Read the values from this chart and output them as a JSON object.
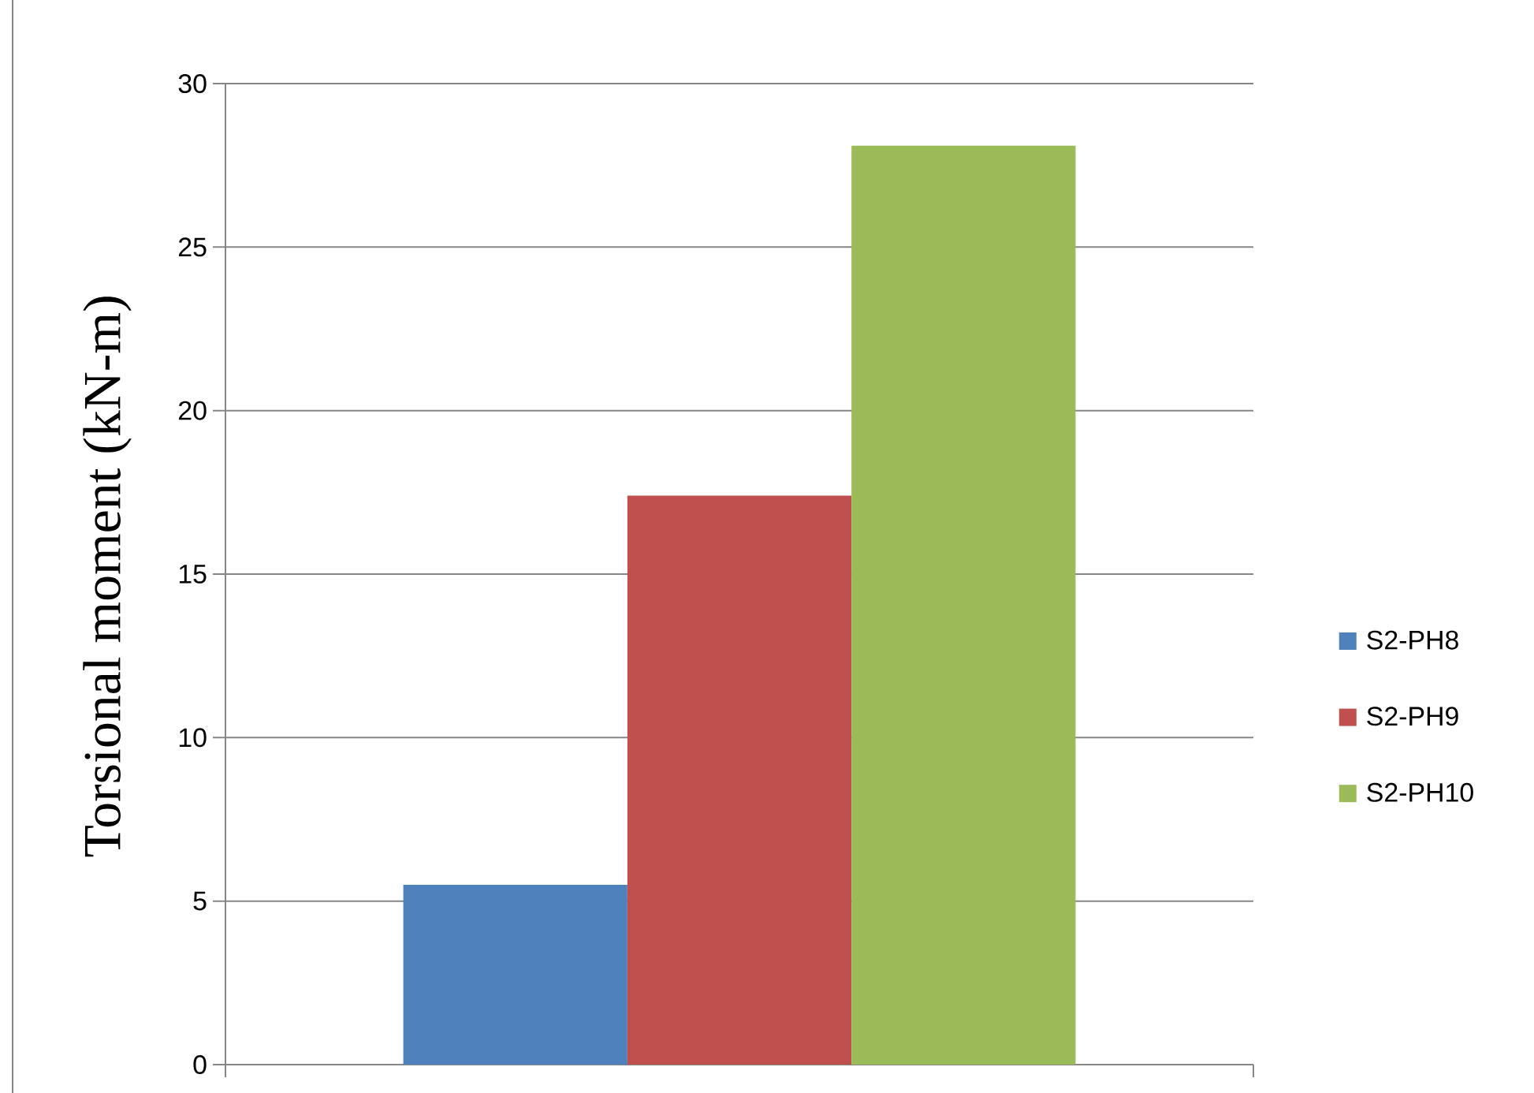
{
  "chart_data": {
    "type": "bar",
    "categories": [
      null
    ],
    "series": [
      {
        "name": "S2-PH8",
        "color": "#4f81bd",
        "values": [
          5.5
        ]
      },
      {
        "name": "S2-PH9",
        "color": "#c0504d",
        "values": [
          17.4
        ]
      },
      {
        "name": "S2-PH10",
        "color": "#9bbb59",
        "values": [
          28.1
        ]
      }
    ],
    "ylabel": "Torsional moment (kN-m)",
    "ylim": [
      0,
      30
    ],
    "yticks": [
      0,
      5,
      10,
      15,
      20,
      25,
      30
    ],
    "grid": "y",
    "legend": "right"
  }
}
